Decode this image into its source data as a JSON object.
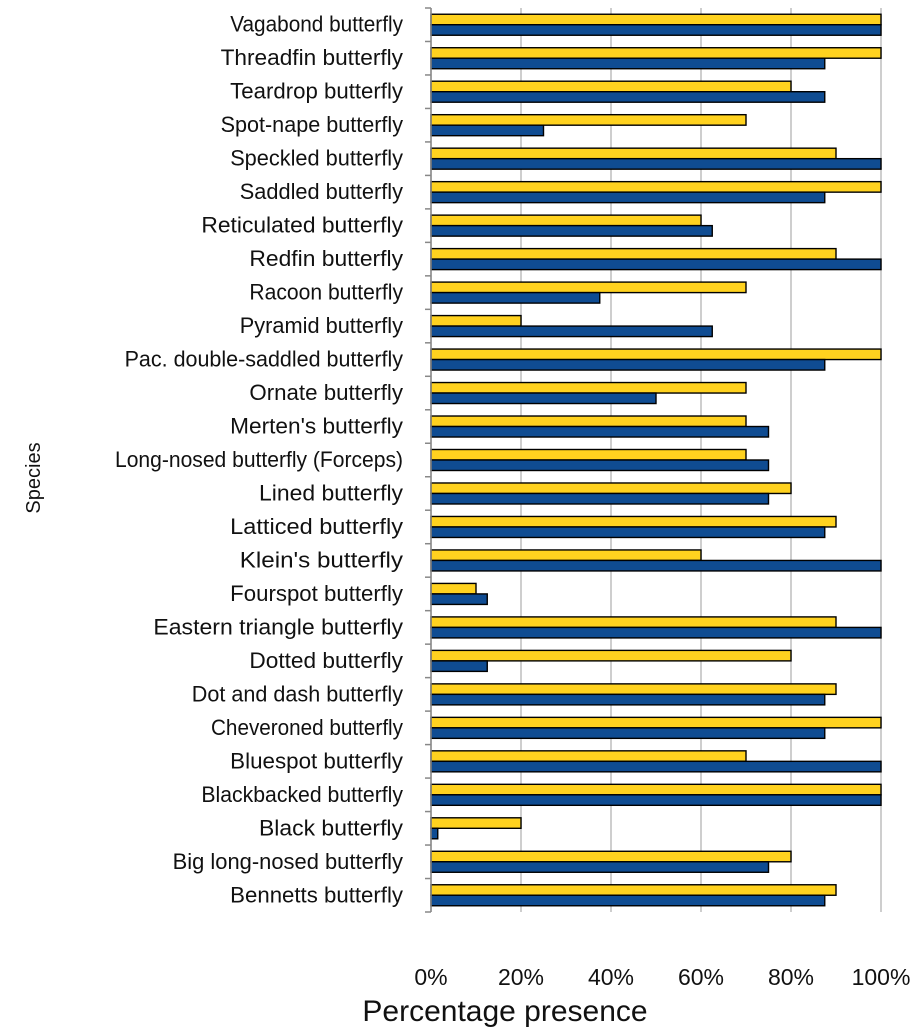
{
  "chart_data": {
    "type": "bar",
    "orientation": "horizontal",
    "xlabel": "Percentage presence",
    "ylabel": "Species",
    "xlim": [
      0,
      100
    ],
    "xticks": [
      "0%",
      "20%",
      "40%",
      "60%",
      "80%",
      "100%"
    ],
    "grid": true,
    "legend": "none",
    "categories": [
      "Vagabond butterfly",
      "Threadfin butterfly",
      "Teardrop butterfly",
      "Spot-nape butterfly",
      "Speckled butterfly",
      "Saddled butterfly",
      "Reticulated butterfly",
      "Redfin butterfly",
      "Racoon butterfly",
      "Pyramid butterfly",
      "Pac. double-saddled butterfly",
      "Ornate butterfly",
      "Merten's butterfly",
      "Long-nosed butterfly (Forceps)",
      "Lined butterfly",
      "Latticed butterfly",
      "Klein's butterfly",
      "Fourspot butterfly",
      "Eastern triangle butterfly",
      "Dotted butterfly",
      "Dot and dash butterfly",
      "Cheveroned butterfly",
      "Bluespot butterfly",
      "Blackbacked butterfly",
      "Black butterfly",
      "Big long-nosed butterfly",
      "Bennetts butterfly"
    ],
    "series": [
      {
        "color": "#FFD21F",
        "values": [
          100,
          100,
          80,
          70,
          90,
          100,
          60,
          90,
          70,
          20,
          100,
          70,
          70,
          70,
          80,
          90,
          60,
          10,
          90,
          80,
          90,
          100,
          70,
          100,
          20,
          80,
          90
        ]
      },
      {
        "color": "#0F4C92",
        "values": [
          100,
          87.5,
          87.5,
          25,
          100,
          87.5,
          62.5,
          100,
          37.5,
          62.5,
          87.5,
          50,
          75,
          75,
          75,
          87.5,
          100,
          12.5,
          100,
          12.5,
          87.5,
          87.5,
          100,
          100,
          1.5,
          75,
          87.5
        ]
      }
    ]
  }
}
